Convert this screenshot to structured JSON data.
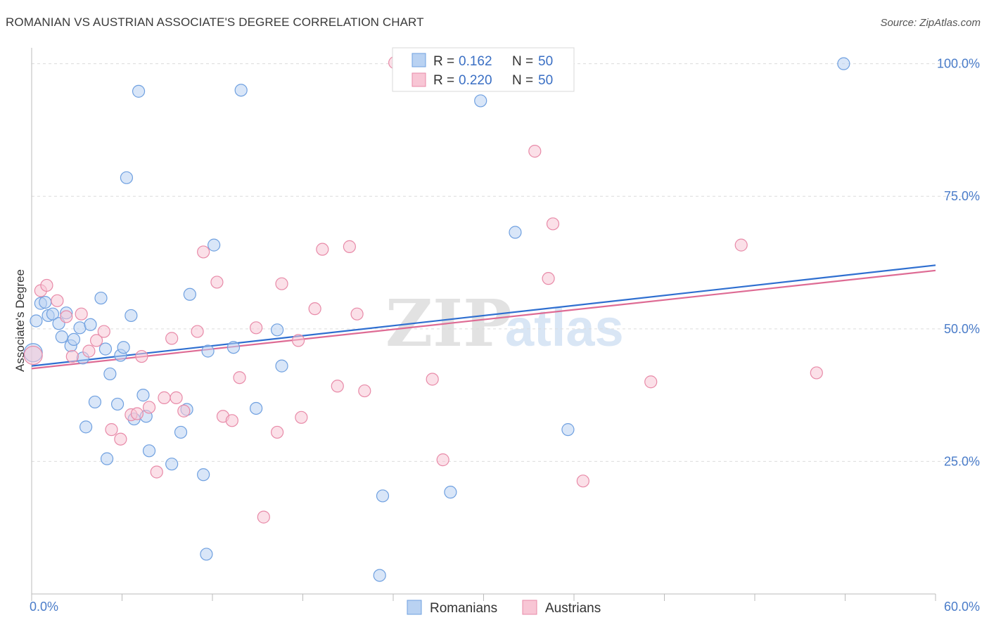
{
  "header": {
    "title": "ROMANIAN VS AUSTRIAN ASSOCIATE'S DEGREE CORRELATION CHART",
    "source": "Source: ZipAtlas.com"
  },
  "watermark": {
    "zip": "ZIP",
    "atlas": "atlas"
  },
  "chart_data": {
    "type": "scatter",
    "ylabel": "Associate's Degree",
    "xlim": [
      0,
      60
    ],
    "ylim": [
      0,
      103
    ],
    "x_tick_labels": [
      "0.0%",
      "60.0%"
    ],
    "y_ticks": [
      25,
      50,
      75,
      100
    ],
    "y_tick_labels": [
      "25.0%",
      "50.0%",
      "75.0%",
      "100.0%"
    ],
    "grid": "horizontal dashed",
    "legend": {
      "position": "top-center",
      "entries": [
        {
          "r_label": "R =",
          "r_value": "0.162",
          "n_label": "N =",
          "n_value": "50"
        },
        {
          "r_label": "R =",
          "r_value": "0.220",
          "n_label": "N =",
          "n_value": "50"
        }
      ]
    },
    "series": [
      {
        "name": "Romanians",
        "color": "#6fa0e0",
        "fill": "#b9d2f2",
        "line_color": "#2f6fd0",
        "trend": {
          "x": [
            0,
            60
          ],
          "y": [
            43.0,
            62.0
          ]
        },
        "points": [
          [
            0.1,
            45.5
          ],
          [
            0.3,
            51.5
          ],
          [
            0.6,
            54.8
          ],
          [
            0.9,
            55.0
          ],
          [
            1.1,
            52.5
          ],
          [
            1.4,
            52.8
          ],
          [
            1.8,
            51.0
          ],
          [
            2.0,
            48.5
          ],
          [
            2.3,
            53.0
          ],
          [
            2.6,
            46.8
          ],
          [
            2.8,
            48.0
          ],
          [
            3.2,
            50.2
          ],
          [
            3.4,
            44.5
          ],
          [
            3.6,
            31.5
          ],
          [
            3.9,
            50.8
          ],
          [
            4.2,
            36.2
          ],
          [
            4.6,
            55.8
          ],
          [
            4.9,
            46.2
          ],
          [
            5.0,
            25.5
          ],
          [
            5.2,
            41.5
          ],
          [
            5.7,
            35.8
          ],
          [
            5.9,
            45.0
          ],
          [
            6.1,
            46.5
          ],
          [
            6.3,
            78.5
          ],
          [
            6.6,
            52.5
          ],
          [
            6.8,
            33.0
          ],
          [
            7.1,
            94.8
          ],
          [
            7.4,
            37.5
          ],
          [
            7.6,
            33.5
          ],
          [
            7.8,
            27.0
          ],
          [
            9.3,
            24.5
          ],
          [
            9.9,
            30.5
          ],
          [
            10.3,
            34.8
          ],
          [
            10.5,
            56.5
          ],
          [
            11.4,
            22.5
          ],
          [
            11.6,
            7.5
          ],
          [
            11.7,
            45.8
          ],
          [
            12.1,
            65.8
          ],
          [
            13.4,
            46.5
          ],
          [
            13.9,
            95.0
          ],
          [
            14.9,
            35.0
          ],
          [
            16.3,
            49.8
          ],
          [
            16.6,
            43.0
          ],
          [
            23.1,
            3.5
          ],
          [
            23.3,
            18.5
          ],
          [
            27.8,
            19.2
          ],
          [
            29.8,
            93.0
          ],
          [
            32.1,
            68.2
          ],
          [
            35.6,
            31.0
          ],
          [
            53.9,
            100.0
          ]
        ]
      },
      {
        "name": "Austrians",
        "color": "#e88aa8",
        "fill": "#f8c6d5",
        "line_color": "#de6b94",
        "trend": {
          "x": [
            0,
            60
          ],
          "y": [
            42.5,
            61.0
          ]
        },
        "points": [
          [
            0.1,
            45.0
          ],
          [
            0.6,
            57.2
          ],
          [
            1.0,
            58.2
          ],
          [
            1.7,
            55.3
          ],
          [
            2.3,
            52.3
          ],
          [
            2.7,
            44.8
          ],
          [
            3.3,
            52.8
          ],
          [
            3.8,
            45.8
          ],
          [
            4.3,
            47.8
          ],
          [
            4.8,
            49.5
          ],
          [
            5.3,
            31.0
          ],
          [
            5.9,
            29.2
          ],
          [
            6.6,
            33.8
          ],
          [
            7.0,
            34.0
          ],
          [
            7.3,
            44.8
          ],
          [
            7.8,
            35.2
          ],
          [
            8.3,
            23.0
          ],
          [
            8.8,
            37.0
          ],
          [
            9.3,
            48.2
          ],
          [
            9.6,
            37.0
          ],
          [
            10.1,
            34.5
          ],
          [
            11.0,
            49.5
          ],
          [
            11.4,
            64.5
          ],
          [
            12.3,
            58.8
          ],
          [
            12.7,
            33.5
          ],
          [
            13.3,
            32.7
          ],
          [
            13.8,
            40.8
          ],
          [
            14.9,
            50.2
          ],
          [
            15.4,
            14.5
          ],
          [
            16.3,
            30.5
          ],
          [
            16.6,
            58.5
          ],
          [
            17.7,
            47.8
          ],
          [
            17.9,
            33.3
          ],
          [
            18.8,
            53.8
          ],
          [
            19.3,
            65.0
          ],
          [
            20.3,
            39.2
          ],
          [
            21.1,
            65.5
          ],
          [
            21.6,
            52.8
          ],
          [
            22.1,
            38.3
          ],
          [
            24.1,
            100.2
          ],
          [
            26.6,
            40.5
          ],
          [
            27.3,
            25.3
          ],
          [
            27.9,
            100.2
          ],
          [
            33.4,
            83.5
          ],
          [
            34.3,
            59.5
          ],
          [
            34.6,
            69.8
          ],
          [
            36.6,
            21.3
          ],
          [
            41.1,
            40.0
          ],
          [
            47.1,
            65.8
          ],
          [
            52.1,
            41.7
          ]
        ]
      }
    ]
  }
}
